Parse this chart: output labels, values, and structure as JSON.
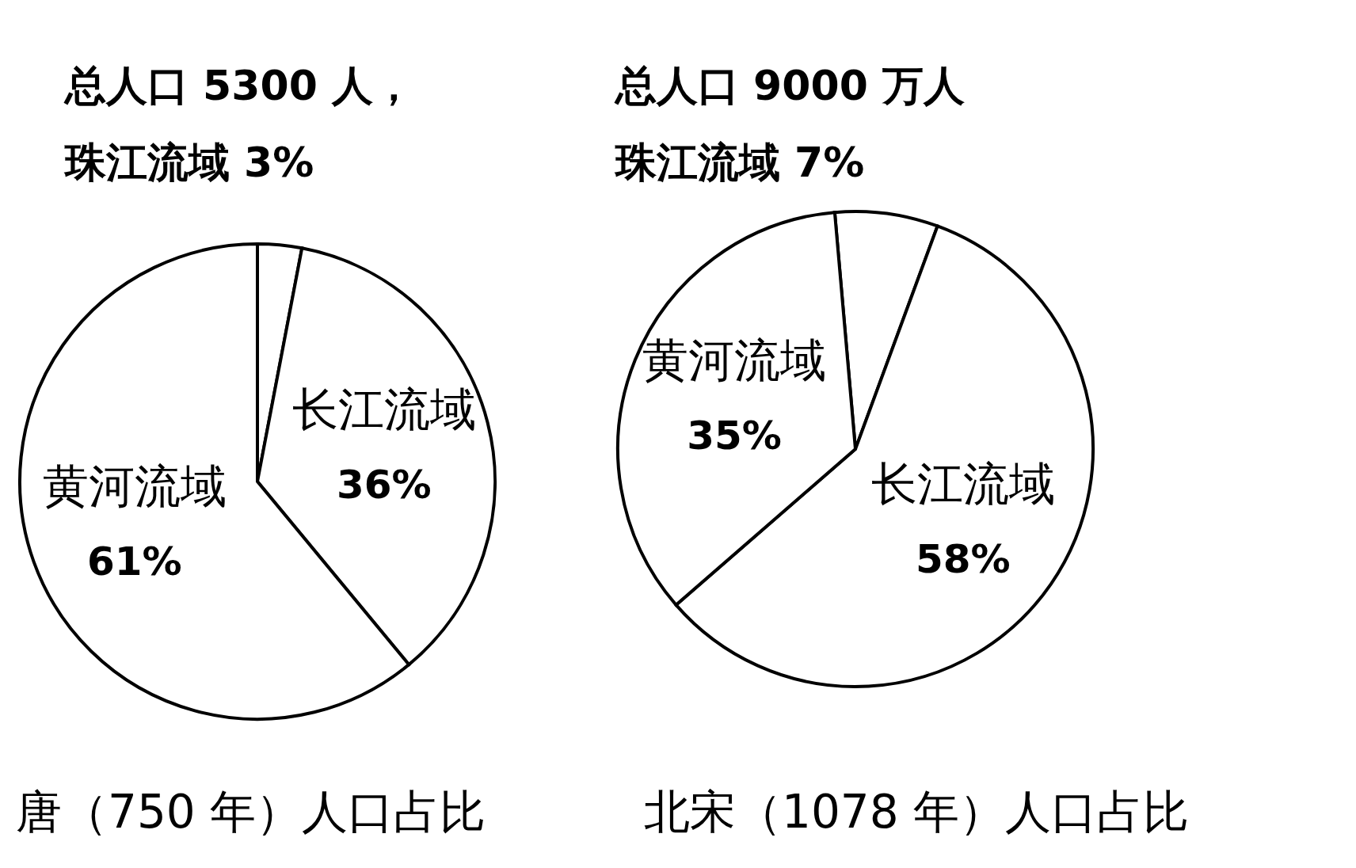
{
  "chart_data": [
    {
      "type": "pie",
      "title": "唐（750 年）人口占比",
      "subtitle": "总人口 5300 人，",
      "categories": [
        "珠江流域",
        "长江流域",
        "黄河流域"
      ],
      "values": [
        3,
        36,
        61
      ],
      "colors": [
        "#ffffff",
        "#ffffff",
        "#ffffff"
      ],
      "value_labels": [
        "3%",
        "36%",
        "61%"
      ]
    },
    {
      "type": "pie",
      "title": "北宋（1078 年）人口占比",
      "subtitle": "总人口 9000 万人",
      "categories": [
        "珠江流域",
        "长江流域",
        "黄河流域"
      ],
      "values": [
        7,
        58,
        35
      ],
      "colors": [
        "#ffffff",
        "#ffffff",
        "#ffffff"
      ],
      "value_labels": [
        "7%",
        "58%",
        "35%"
      ]
    }
  ]
}
